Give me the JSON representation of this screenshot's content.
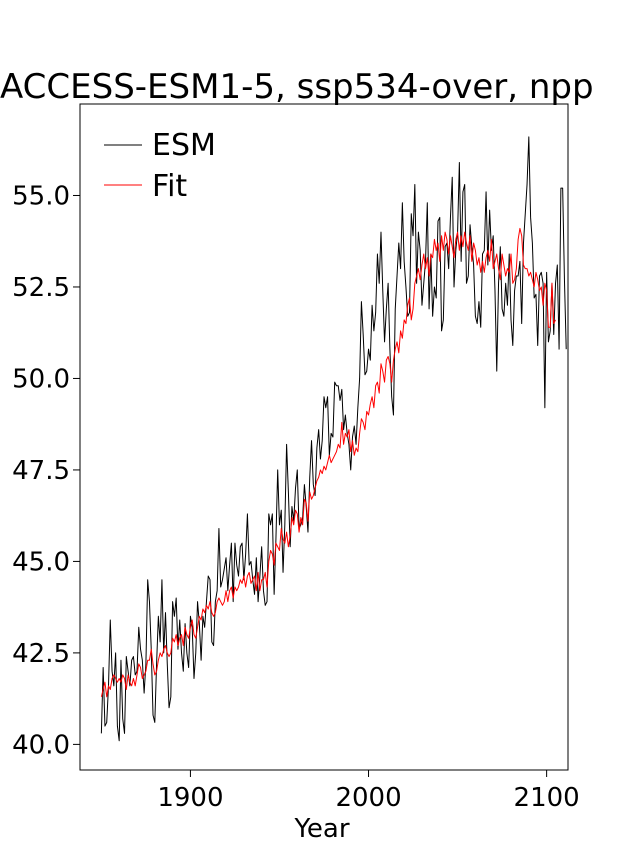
{
  "chart_data": {
    "type": "line",
    "title": "ACCESS-ESM1-5, ssp534-over, npp",
    "xlabel": "Year",
    "ylabel": "",
    "xlim": [
      1838,
      2112
    ],
    "ylim": [
      39.3,
      57.5
    ],
    "xticks": [
      1900,
      2000,
      2100
    ],
    "yticks": [
      40.0,
      42.5,
      45.0,
      47.5,
      50.0,
      52.5,
      55.0
    ],
    "xtick_labels": [
      "1900",
      "2000",
      "2100"
    ],
    "ytick_labels": [
      "40.0",
      "42.5",
      "45.0",
      "47.5",
      "50.0",
      "52.5",
      "55.0"
    ],
    "legend": {
      "placement": "upper-left",
      "entries": [
        "ESM",
        "Fit"
      ]
    },
    "series": [
      {
        "name": "ESM",
        "color": "#000000",
        "x_start": 1850,
        "x_step": 1,
        "values": [
          40.3,
          42.1,
          40.5,
          40.6,
          41.6,
          43.4,
          42.0,
          41.6,
          42.5,
          40.5,
          40.1,
          42.3,
          40.7,
          40.3,
          42.4,
          42.0,
          41.6,
          42.3,
          42.4,
          41.9,
          42.0,
          43.2,
          42.6,
          42.3,
          41.4,
          42.2,
          44.5,
          43.9,
          42.6,
          40.8,
          40.6,
          42.2,
          43.5,
          42.8,
          44.5,
          42.5,
          43.6,
          42.2,
          41.0,
          41.3,
          43.9,
          43.5,
          44.0,
          42.6,
          43.4,
          42.5,
          42.0,
          43.3,
          42.5,
          42.1,
          43.5,
          43.2,
          41.8,
          42.5,
          43.9,
          43.3,
          42.3,
          43.5,
          43.2,
          43.9,
          44.6,
          44.5,
          42.8,
          42.7,
          43.9,
          44.2,
          45.9,
          44.3,
          44.5,
          44.8,
          45.1,
          44.2,
          44.9,
          45.5,
          43.9,
          45.5,
          44.9,
          44.6,
          45.4,
          45.5,
          44.5,
          45.2,
          46.3,
          44.9,
          45.0,
          44.5,
          44.1,
          45.1,
          43.9,
          44.6,
          45.4,
          44.2,
          43.8,
          43.9,
          46.3,
          46.0,
          46.3,
          44.1,
          45.6,
          47.5,
          46.0,
          46.4,
          44.7,
          46.0,
          48.2,
          46.9,
          45.4,
          46.5,
          46.1,
          47.0,
          47.5,
          45.9,
          46.0,
          46.2,
          47.1,
          46.5,
          45.8,
          47.3,
          48.3,
          47.1,
          46.8,
          48.1,
          48.6,
          47.8,
          48.3,
          49.5,
          49.2,
          49.5,
          47.9,
          48.5,
          48.4,
          49.9,
          49.8,
          49.8,
          49.4,
          49.7,
          48.6,
          49.0,
          48.5,
          48.2,
          47.5,
          48.4,
          48.7,
          48.2,
          49.2,
          50.0,
          52.1,
          51.2,
          50.1,
          50.2,
          50.8,
          50.5,
          52.0,
          51.3,
          51.8,
          53.4,
          52.6,
          54.0,
          52.4,
          51.0,
          51.9,
          52.6,
          50.8,
          49.5,
          49.0,
          51.9,
          52.8,
          53.7,
          53.0,
          54.8,
          53.2,
          52.5,
          51.7,
          51.8,
          54.5,
          53.9,
          55.3,
          52.6,
          54.0,
          53.5,
          52.0,
          52.6,
          53.2,
          54.8,
          51.9,
          53.4,
          51.7,
          52.5,
          52.2,
          54.3,
          54.4,
          51.3,
          51.6,
          53.6,
          53.7,
          53.0,
          54.4,
          55.5,
          52.5,
          53.5,
          54.0,
          55.9,
          53.2,
          55.1,
          55.3,
          52.6,
          52.8,
          54.2,
          53.6,
          53.1,
          51.7,
          51.5,
          52.1,
          51.4,
          53.4,
          53.5,
          55.1,
          53.1,
          54.6,
          53.5,
          53.9,
          52.4,
          50.2,
          52.6,
          53.6,
          51.9,
          51.7,
          52.6,
          52.0,
          53.4,
          51.6,
          50.9,
          52.4,
          52.8,
          52.8,
          53.2,
          51.5,
          53.7,
          54.5,
          55.3,
          56.6,
          54.4,
          53.7,
          52.2,
          52.3,
          50.9,
          52.8,
          52.9,
          52.6,
          49.2,
          52.9,
          51.0,
          51.3,
          52.6,
          51.2,
          52.6,
          53.1,
          50.8,
          55.2,
          55.2,
          52.7,
          50.8
        ]
      },
      {
        "name": "Fit",
        "color": "#ff0000",
        "x_start": 1850,
        "x_step": 1,
        "values": [
          41.3,
          41.5,
          41.7,
          41.3,
          41.6,
          41.5,
          41.8,
          41.9,
          41.8,
          41.7,
          41.8,
          41.7,
          41.9,
          41.8,
          41.5,
          41.9,
          41.7,
          41.6,
          41.8,
          41.6,
          41.9,
          42.2,
          42.1,
          41.8,
          41.9,
          42.0,
          42.3,
          42.3,
          42.6,
          42.2,
          41.9,
          42.0,
          42.3,
          42.5,
          42.4,
          42.6,
          42.7,
          42.5,
          42.4,
          42.5,
          42.9,
          42.8,
          43.0,
          42.7,
          42.9,
          43.0,
          42.7,
          43.2,
          43.0,
          42.9,
          43.2,
          43.4,
          43.0,
          42.9,
          43.2,
          43.5,
          43.4,
          43.7,
          43.6,
          43.8,
          43.7,
          43.9,
          43.6,
          43.5,
          43.6,
          43.9,
          44.0,
          43.9,
          43.8,
          43.9,
          44.2,
          43.9,
          44.2,
          44.3,
          44.0,
          44.3,
          44.2,
          44.3,
          44.5,
          44.4,
          44.6,
          44.3,
          44.6,
          44.7,
          44.4,
          44.5,
          44.6,
          44.2,
          44.7,
          44.2,
          44.5,
          44.5,
          44.7,
          44.3,
          45.0,
          45.3,
          45.2,
          44.9,
          45.5,
          45.4,
          45.3,
          45.9,
          45.6,
          45.5,
          45.8,
          45.4,
          45.7,
          46.2,
          46.0,
          46.4,
          46.3,
          45.8,
          46.2,
          46.0,
          46.7,
          46.6,
          46.1,
          46.9,
          46.7,
          46.8,
          47.0,
          47.2,
          47.3,
          47.5,
          47.4,
          47.6,
          47.5,
          47.7,
          47.9,
          47.7,
          47.8,
          47.9,
          48.0,
          48.2,
          48.1,
          48.8,
          48.2,
          48.5,
          48.4,
          48.6,
          48.0,
          48.3,
          47.9,
          48.1,
          48.0,
          48.5,
          48.9,
          48.8,
          48.6,
          49.1,
          49.0,
          49.3,
          49.5,
          49.2,
          49.8,
          49.9,
          49.6,
          50.4,
          50.2,
          49.9,
          50.5,
          50.6,
          50.4,
          49.9,
          50.5,
          50.8,
          51.0,
          50.7,
          51.3,
          51.1,
          51.6,
          51.5,
          52.0,
          52.2,
          51.6,
          51.9,
          52.6,
          52.8,
          53.0,
          52.7,
          53.1,
          53.4,
          53.0,
          53.3,
          52.8,
          53.4,
          53.3,
          53.8,
          53.5,
          53.7,
          53.2,
          53.9,
          53.5,
          54.0,
          53.8,
          53.4,
          53.9,
          53.6,
          53.3,
          53.8,
          54.0,
          53.5,
          53.9,
          53.6,
          54.0,
          53.7,
          53.5,
          53.9,
          53.2,
          53.7,
          53.5,
          53.1,
          53.3,
          52.9,
          53.2,
          52.9,
          53.3,
          53.5,
          53.2,
          53.8,
          53.0,
          53.2,
          53.4,
          53.0,
          52.7,
          53.4,
          53.1,
          52.8,
          53.0,
          52.9,
          53.4,
          52.6,
          52.7,
          53.0,
          53.8,
          54.1,
          53.9,
          53.1,
          53.0,
          53.0,
          52.8,
          52.9,
          52.7,
          52.5,
          52.9,
          52.7,
          52.4,
          52.5,
          52.0,
          52.6,
          52.4,
          51.4,
          51.4,
          52.6,
          51.5,
          51.6
        ]
      }
    ]
  }
}
